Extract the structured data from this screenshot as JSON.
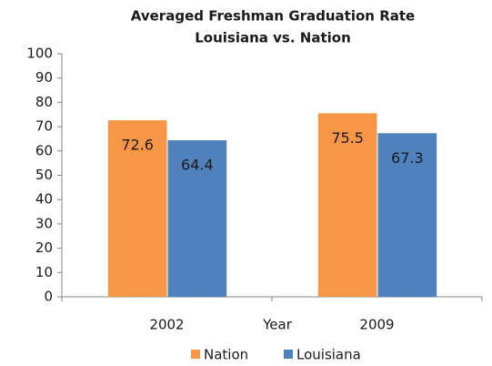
{
  "chart_data": {
    "type": "bar",
    "title": "Averaged Freshman Graduation Rate",
    "subtitle": "Louisiana vs. Nation",
    "x_label": "Year",
    "categories": [
      "2002",
      "2009"
    ],
    "series": [
      {
        "name": "Nation",
        "color": "#f79646",
        "values": [
          72.6,
          75.5
        ]
      },
      {
        "name": "Louisiana",
        "color": "#4f81bd",
        "values": [
          64.4,
          67.3
        ]
      }
    ],
    "ylim": [
      0,
      100
    ],
    "yticks": [
      0,
      10,
      20,
      30,
      40,
      50,
      60,
      70,
      80,
      90,
      100
    ],
    "grid": false,
    "legend": "bottom"
  }
}
